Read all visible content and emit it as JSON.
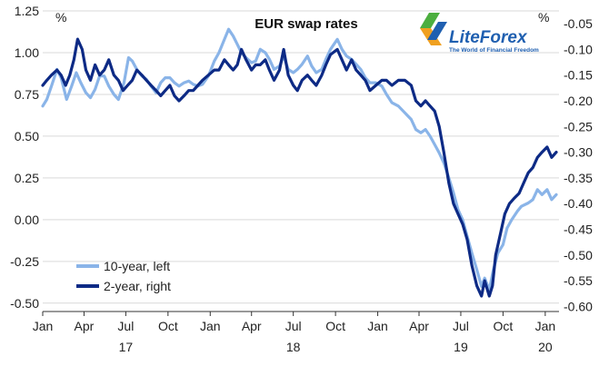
{
  "chart_data": {
    "type": "line",
    "title": "EUR swap rates",
    "left_unit": "%",
    "right_unit": "%",
    "grid": true,
    "legend_position": "bottom-left",
    "x_range": [
      "2017-01-01",
      "2020-01-31"
    ],
    "x_ticks": [
      {
        "date": "2017-01-01",
        "label": "Jan"
      },
      {
        "date": "2017-04-01",
        "label": "Apr"
      },
      {
        "date": "2017-07-01",
        "label": "Jul"
      },
      {
        "date": "2017-10-01",
        "label": "Oct"
      },
      {
        "date": "2018-01-01",
        "label": "Jan"
      },
      {
        "date": "2018-04-01",
        "label": "Apr"
      },
      {
        "date": "2018-07-01",
        "label": "Jul"
      },
      {
        "date": "2018-10-01",
        "label": "Oct"
      },
      {
        "date": "2019-01-01",
        "label": "Jan"
      },
      {
        "date": "2019-04-01",
        "label": "Apr"
      },
      {
        "date": "2019-07-01",
        "label": "Jul"
      },
      {
        "date": "2019-10-01",
        "label": "Oct"
      },
      {
        "date": "2020-01-01",
        "label": "Jan"
      }
    ],
    "year_labels": [
      {
        "date": "2017-07-01",
        "label": "17"
      },
      {
        "date": "2018-07-01",
        "label": "18"
      },
      {
        "date": "2019-07-01",
        "label": "19"
      },
      {
        "date": "2020-01-01",
        "label": "20"
      }
    ],
    "y_left": {
      "range": [
        -0.55,
        1.25
      ],
      "ticks": [
        {
          "value": 1.25,
          "label": "1.25"
        },
        {
          "value": 1.0,
          "label": "1.00"
        },
        {
          "value": 0.75,
          "label": "0.75"
        },
        {
          "value": 0.5,
          "label": "0.50"
        },
        {
          "value": 0.25,
          "label": "0.25"
        },
        {
          "value": 0.0,
          "label": "0.00"
        },
        {
          "value": -0.25,
          "label": "-0.25"
        },
        {
          "value": -0.5,
          "label": "-0.50"
        }
      ]
    },
    "y_right": {
      "range": [
        -0.61,
        -0.025
      ],
      "ticks": [
        {
          "value": -0.05,
          "label": "-0.05"
        },
        {
          "value": -0.1,
          "label": "-0.10"
        },
        {
          "value": -0.15,
          "label": "-0.15"
        },
        {
          "value": -0.2,
          "label": "-0.20"
        },
        {
          "value": -0.25,
          "label": "-0.25"
        },
        {
          "value": -0.3,
          "label": "-0.30"
        },
        {
          "value": -0.35,
          "label": "-0.35"
        },
        {
          "value": -0.4,
          "label": "-0.40"
        },
        {
          "value": -0.45,
          "label": "-0.45"
        },
        {
          "value": -0.5,
          "label": "-0.50"
        },
        {
          "value": -0.55,
          "label": "-0.55"
        },
        {
          "value": -0.6,
          "label": "-0.60"
        }
      ]
    },
    "series": [
      {
        "name": "10-year, left",
        "axis": "left",
        "color": "#8ab4e8",
        "points": [
          [
            "2017-01-01",
            0.68
          ],
          [
            "2017-01-10",
            0.72
          ],
          [
            "2017-01-20",
            0.8
          ],
          [
            "2017-02-01",
            0.9
          ],
          [
            "2017-02-10",
            0.85
          ],
          [
            "2017-02-22",
            0.72
          ],
          [
            "2017-03-05",
            0.8
          ],
          [
            "2017-03-15",
            0.88
          ],
          [
            "2017-03-25",
            0.82
          ],
          [
            "2017-04-05",
            0.76
          ],
          [
            "2017-04-15",
            0.73
          ],
          [
            "2017-04-25",
            0.78
          ],
          [
            "2017-05-05",
            0.86
          ],
          [
            "2017-05-15",
            0.86
          ],
          [
            "2017-05-25",
            0.8
          ],
          [
            "2017-06-05",
            0.75
          ],
          [
            "2017-06-15",
            0.72
          ],
          [
            "2017-06-27",
            0.82
          ],
          [
            "2017-07-07",
            0.97
          ],
          [
            "2017-07-15",
            0.95
          ],
          [
            "2017-07-25",
            0.9
          ],
          [
            "2017-08-05",
            0.86
          ],
          [
            "2017-08-15",
            0.84
          ],
          [
            "2017-08-25",
            0.8
          ],
          [
            "2017-09-05",
            0.76
          ],
          [
            "2017-09-15",
            0.82
          ],
          [
            "2017-09-25",
            0.85
          ],
          [
            "2017-10-05",
            0.85
          ],
          [
            "2017-10-15",
            0.82
          ],
          [
            "2017-10-25",
            0.8
          ],
          [
            "2017-11-05",
            0.82
          ],
          [
            "2017-11-15",
            0.83
          ],
          [
            "2017-11-25",
            0.81
          ],
          [
            "2017-12-05",
            0.8
          ],
          [
            "2017-12-15",
            0.81
          ],
          [
            "2017-12-28",
            0.86
          ],
          [
            "2018-01-10",
            0.95
          ],
          [
            "2018-01-20",
            1.0
          ],
          [
            "2018-02-01",
            1.08
          ],
          [
            "2018-02-10",
            1.14
          ],
          [
            "2018-02-20",
            1.1
          ],
          [
            "2018-03-01",
            1.05
          ],
          [
            "2018-03-10",
            1.0
          ],
          [
            "2018-03-20",
            0.97
          ],
          [
            "2018-04-01",
            0.94
          ],
          [
            "2018-04-10",
            0.95
          ],
          [
            "2018-04-20",
            1.02
          ],
          [
            "2018-05-01",
            1.0
          ],
          [
            "2018-05-10",
            0.96
          ],
          [
            "2018-05-20",
            0.9
          ],
          [
            "2018-06-01",
            0.92
          ],
          [
            "2018-06-10",
            0.98
          ],
          [
            "2018-06-20",
            0.9
          ],
          [
            "2018-07-01",
            0.88
          ],
          [
            "2018-07-10",
            0.9
          ],
          [
            "2018-07-20",
            0.93
          ],
          [
            "2018-08-01",
            0.98
          ],
          [
            "2018-08-10",
            0.92
          ],
          [
            "2018-08-20",
            0.88
          ],
          [
            "2018-09-01",
            0.9
          ],
          [
            "2018-09-10",
            0.96
          ],
          [
            "2018-09-20",
            1.02
          ],
          [
            "2018-10-05",
            1.08
          ],
          [
            "2018-10-15",
            1.02
          ],
          [
            "2018-10-25",
            0.98
          ],
          [
            "2018-11-05",
            0.96
          ],
          [
            "2018-11-15",
            0.93
          ],
          [
            "2018-11-25",
            0.9
          ],
          [
            "2018-12-05",
            0.85
          ],
          [
            "2018-12-15",
            0.82
          ],
          [
            "2018-12-28",
            0.82
          ],
          [
            "2019-01-10",
            0.8
          ],
          [
            "2019-01-20",
            0.75
          ],
          [
            "2019-02-01",
            0.7
          ],
          [
            "2019-02-15",
            0.68
          ],
          [
            "2019-03-01",
            0.64
          ],
          [
            "2019-03-15",
            0.6
          ],
          [
            "2019-03-25",
            0.54
          ],
          [
            "2019-04-05",
            0.52
          ],
          [
            "2019-04-15",
            0.54
          ],
          [
            "2019-04-25",
            0.5
          ],
          [
            "2019-05-05",
            0.45
          ],
          [
            "2019-05-15",
            0.4
          ],
          [
            "2019-05-25",
            0.34
          ],
          [
            "2019-06-05",
            0.25
          ],
          [
            "2019-06-15",
            0.16
          ],
          [
            "2019-06-25",
            0.06
          ],
          [
            "2019-07-05",
            0.0
          ],
          [
            "2019-07-15",
            -0.1
          ],
          [
            "2019-07-25",
            -0.2
          ],
          [
            "2019-08-05",
            -0.3
          ],
          [
            "2019-08-15",
            -0.4
          ],
          [
            "2019-08-22",
            -0.35
          ],
          [
            "2019-09-01",
            -0.42
          ],
          [
            "2019-09-10",
            -0.3
          ],
          [
            "2019-09-20",
            -0.2
          ],
          [
            "2019-10-01",
            -0.15
          ],
          [
            "2019-10-10",
            -0.05
          ],
          [
            "2019-10-20",
            0.0
          ],
          [
            "2019-11-01",
            0.05
          ],
          [
            "2019-11-10",
            0.08
          ],
          [
            "2019-11-25",
            0.1
          ],
          [
            "2019-12-05",
            0.12
          ],
          [
            "2019-12-15",
            0.18
          ],
          [
            "2019-12-25",
            0.15
          ],
          [
            "2020-01-05",
            0.18
          ],
          [
            "2020-01-15",
            0.12
          ],
          [
            "2020-01-25",
            0.15
          ]
        ]
      },
      {
        "name": "2-year, right",
        "axis": "right",
        "color": "#0d2a85",
        "points": [
          [
            "2017-01-01",
            -0.17
          ],
          [
            "2017-01-10",
            -0.16
          ],
          [
            "2017-01-20",
            -0.15
          ],
          [
            "2017-02-01",
            -0.14
          ],
          [
            "2017-02-10",
            -0.15
          ],
          [
            "2017-02-20",
            -0.17
          ],
          [
            "2017-03-01",
            -0.15
          ],
          [
            "2017-03-10",
            -0.12
          ],
          [
            "2017-03-18",
            -0.08
          ],
          [
            "2017-03-28",
            -0.1
          ],
          [
            "2017-04-05",
            -0.14
          ],
          [
            "2017-04-15",
            -0.16
          ],
          [
            "2017-04-25",
            -0.13
          ],
          [
            "2017-05-05",
            -0.15
          ],
          [
            "2017-05-15",
            -0.14
          ],
          [
            "2017-05-25",
            -0.12
          ],
          [
            "2017-06-05",
            -0.15
          ],
          [
            "2017-06-15",
            -0.16
          ],
          [
            "2017-06-25",
            -0.18
          ],
          [
            "2017-07-05",
            -0.17
          ],
          [
            "2017-07-15",
            -0.16
          ],
          [
            "2017-07-25",
            -0.14
          ],
          [
            "2017-08-05",
            -0.15
          ],
          [
            "2017-08-15",
            -0.16
          ],
          [
            "2017-08-25",
            -0.17
          ],
          [
            "2017-09-05",
            -0.18
          ],
          [
            "2017-09-15",
            -0.19
          ],
          [
            "2017-09-25",
            -0.18
          ],
          [
            "2017-10-05",
            -0.17
          ],
          [
            "2017-10-15",
            -0.19
          ],
          [
            "2017-10-25",
            -0.2
          ],
          [
            "2017-11-05",
            -0.19
          ],
          [
            "2017-11-15",
            -0.18
          ],
          [
            "2017-11-25",
            -0.18
          ],
          [
            "2017-12-05",
            -0.17
          ],
          [
            "2017-12-15",
            -0.16
          ],
          [
            "2017-12-28",
            -0.15
          ],
          [
            "2018-01-10",
            -0.14
          ],
          [
            "2018-01-20",
            -0.14
          ],
          [
            "2018-02-01",
            -0.12
          ],
          [
            "2018-02-10",
            -0.13
          ],
          [
            "2018-02-20",
            -0.14
          ],
          [
            "2018-03-01",
            -0.13
          ],
          [
            "2018-03-10",
            -0.1
          ],
          [
            "2018-03-20",
            -0.12
          ],
          [
            "2018-04-01",
            -0.14
          ],
          [
            "2018-04-10",
            -0.13
          ],
          [
            "2018-04-20",
            -0.13
          ],
          [
            "2018-05-01",
            -0.12
          ],
          [
            "2018-05-10",
            -0.14
          ],
          [
            "2018-05-20",
            -0.16
          ],
          [
            "2018-06-01",
            -0.14
          ],
          [
            "2018-06-10",
            -0.1
          ],
          [
            "2018-06-20",
            -0.15
          ],
          [
            "2018-07-01",
            -0.17
          ],
          [
            "2018-07-10",
            -0.18
          ],
          [
            "2018-07-20",
            -0.16
          ],
          [
            "2018-08-01",
            -0.15
          ],
          [
            "2018-08-10",
            -0.16
          ],
          [
            "2018-08-20",
            -0.17
          ],
          [
            "2018-09-01",
            -0.15
          ],
          [
            "2018-09-10",
            -0.13
          ],
          [
            "2018-09-20",
            -0.11
          ],
          [
            "2018-10-05",
            -0.1
          ],
          [
            "2018-10-15",
            -0.12
          ],
          [
            "2018-10-25",
            -0.14
          ],
          [
            "2018-11-05",
            -0.12
          ],
          [
            "2018-11-15",
            -0.14
          ],
          [
            "2018-11-25",
            -0.15
          ],
          [
            "2018-12-05",
            -0.16
          ],
          [
            "2018-12-15",
            -0.18
          ],
          [
            "2018-12-28",
            -0.17
          ],
          [
            "2019-01-10",
            -0.16
          ],
          [
            "2019-01-20",
            -0.16
          ],
          [
            "2019-02-01",
            -0.17
          ],
          [
            "2019-02-15",
            -0.16
          ],
          [
            "2019-03-01",
            -0.16
          ],
          [
            "2019-03-15",
            -0.17
          ],
          [
            "2019-03-25",
            -0.2
          ],
          [
            "2019-04-05",
            -0.21
          ],
          [
            "2019-04-15",
            -0.2
          ],
          [
            "2019-04-25",
            -0.21
          ],
          [
            "2019-05-05",
            -0.22
          ],
          [
            "2019-05-15",
            -0.25
          ],
          [
            "2019-05-25",
            -0.3
          ],
          [
            "2019-06-05",
            -0.36
          ],
          [
            "2019-06-15",
            -0.4
          ],
          [
            "2019-06-25",
            -0.42
          ],
          [
            "2019-07-05",
            -0.44
          ],
          [
            "2019-07-15",
            -0.47
          ],
          [
            "2019-07-25",
            -0.52
          ],
          [
            "2019-08-05",
            -0.56
          ],
          [
            "2019-08-15",
            -0.58
          ],
          [
            "2019-08-22",
            -0.55
          ],
          [
            "2019-09-01",
            -0.58
          ],
          [
            "2019-09-08",
            -0.56
          ],
          [
            "2019-09-15",
            -0.5
          ],
          [
            "2019-09-25",
            -0.46
          ],
          [
            "2019-10-05",
            -0.42
          ],
          [
            "2019-10-15",
            -0.4
          ],
          [
            "2019-10-25",
            -0.39
          ],
          [
            "2019-11-05",
            -0.38
          ],
          [
            "2019-11-15",
            -0.36
          ],
          [
            "2019-11-25",
            -0.34
          ],
          [
            "2019-12-05",
            -0.33
          ],
          [
            "2019-12-15",
            -0.31
          ],
          [
            "2019-12-25",
            -0.3
          ],
          [
            "2020-01-05",
            -0.29
          ],
          [
            "2020-01-15",
            -0.31
          ],
          [
            "2020-01-25",
            -0.3
          ]
        ]
      }
    ]
  },
  "watermark": {
    "brand_name": "LiteForex",
    "tagline": "The World of Financial Freedom",
    "green": "#4cae3f",
    "orange": "#f0a020",
    "blue": "#1f5fb0"
  }
}
